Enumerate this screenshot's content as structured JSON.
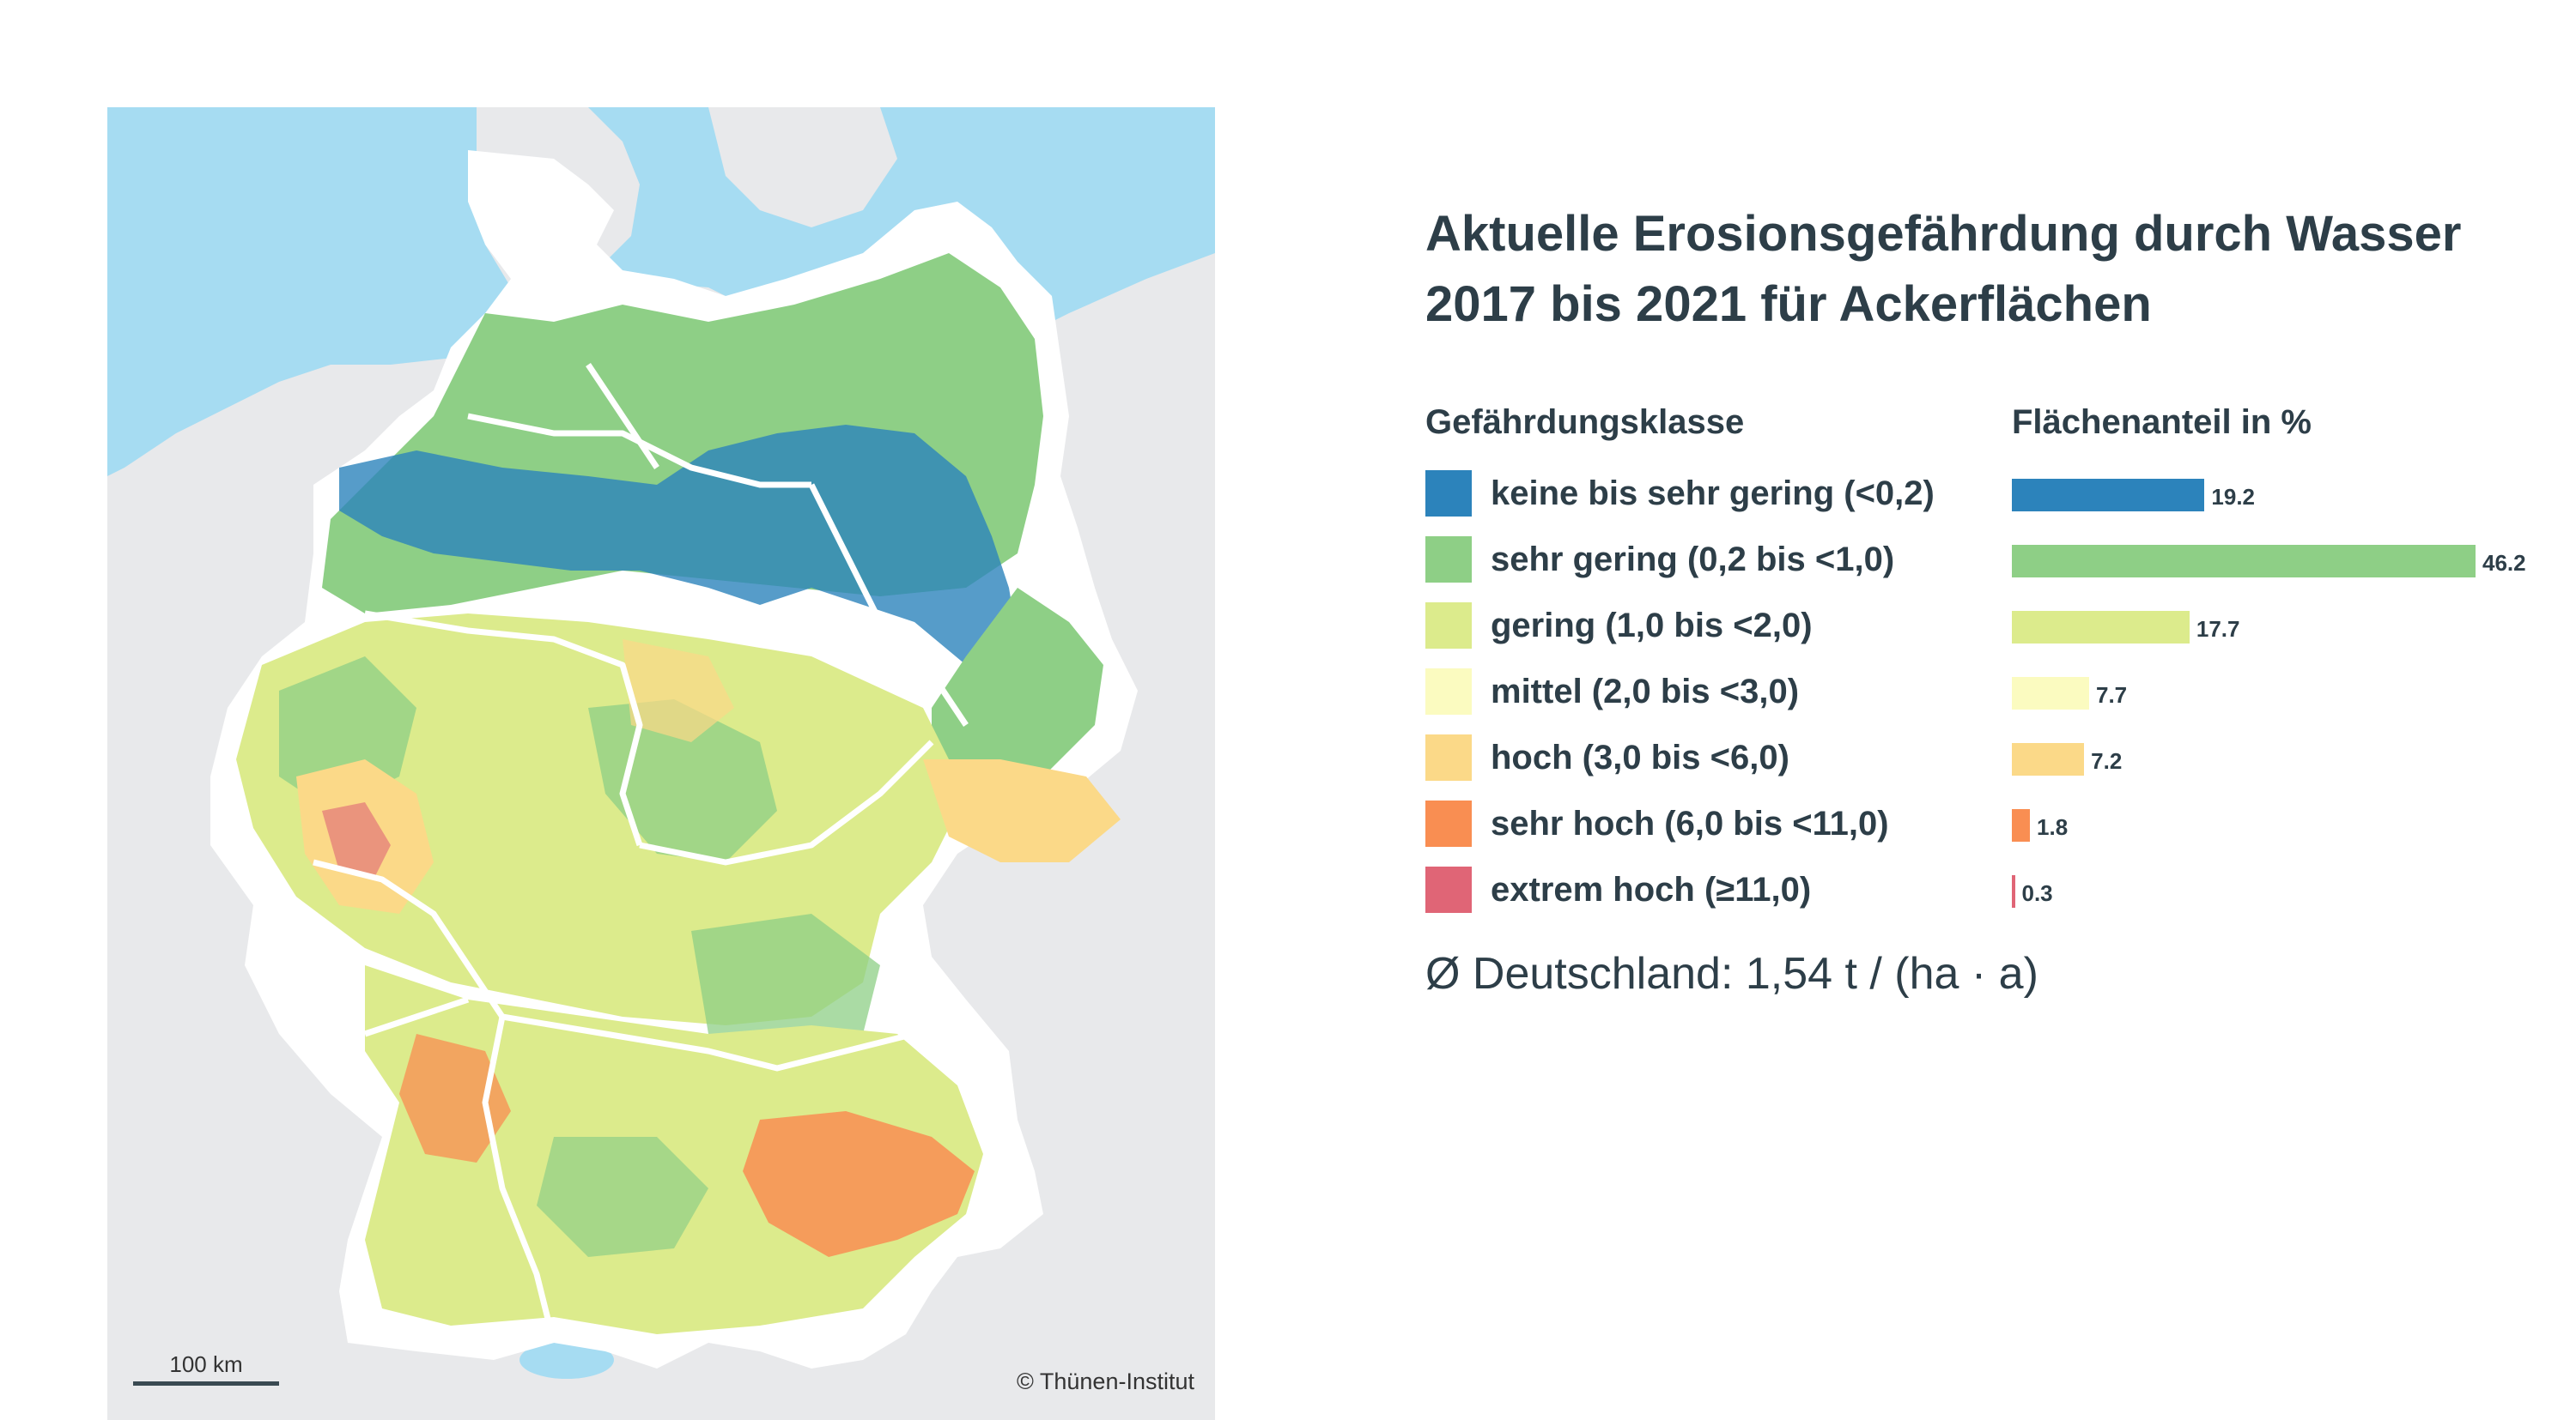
{
  "map": {
    "scale_label": "100 km",
    "copyright": "© Thünen-Institut",
    "colors": {
      "water": "#a6dcf2",
      "background": "#e8e9eb",
      "border": "#ffffff",
      "keine": "#2c83bb",
      "sehr_gering": "#8ecf86",
      "gering": "#dceb8c",
      "mittel": "#fbfbc0",
      "hoch": "#fbd988",
      "sehr_hoch": "#f98e52",
      "extrem": "#e06576"
    }
  },
  "title_line1": "Aktuelle Erosionsgefährdung durch Wasser",
  "title_line2": "2017 bis 2021 für Ackerflächen",
  "legend_header_class": "Gefährdungsklasse",
  "legend_header_share": "Flächenanteil in %",
  "classes": [
    {
      "label": "keine bis sehr gering (<0,2)",
      "share": 19.2,
      "share_label": "19.2",
      "color": "#2c83bb"
    },
    {
      "label": "sehr gering (0,2 bis <1,0)",
      "share": 46.2,
      "share_label": "46.2",
      "color": "#8ecf86"
    },
    {
      "label": "gering (1,0 bis <2,0)",
      "share": 17.7,
      "share_label": "17.7",
      "color": "#dceb8c"
    },
    {
      "label": "mittel (2,0 bis <3,0)",
      "share": 7.7,
      "share_label": "7.7",
      "color": "#fbfbc0"
    },
    {
      "label": "hoch (3,0 bis <6,0)",
      "share": 7.2,
      "share_label": "7.2",
      "color": "#fbd988"
    },
    {
      "label": "sehr hoch (6,0 bis <11,0)",
      "share": 1.8,
      "share_label": "1.8",
      "color": "#f98e52"
    },
    {
      "label": "extrem hoch (≥11,0)",
      "share": 0.3,
      "share_label": "0.3",
      "color": "#e06576"
    }
  ],
  "average_text": "Ø Deutschland: 1,54 t / (ha · a)"
}
